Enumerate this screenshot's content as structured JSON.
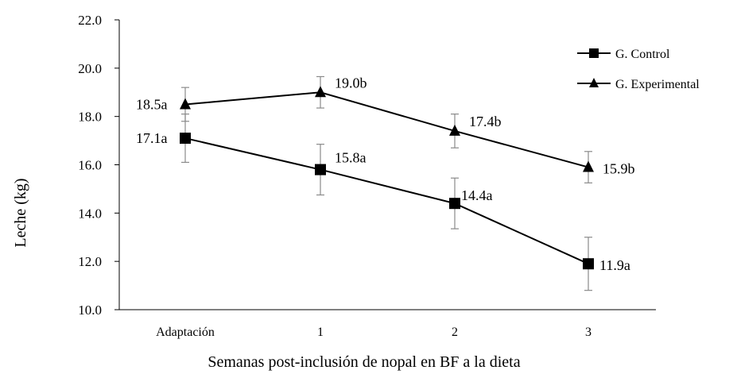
{
  "chart_data": {
    "type": "line",
    "categories": [
      "Adaptación",
      "1",
      "2",
      "3"
    ],
    "series": [
      {
        "name": "G. Control",
        "marker": "square",
        "values": [
          17.1,
          15.8,
          14.4,
          11.9
        ],
        "errors": [
          1.0,
          1.05,
          1.05,
          1.1
        ],
        "labels": [
          "17.1a",
          "15.8a",
          "14.4a",
          "11.9a"
        ]
      },
      {
        "name": "G. Experimental",
        "marker": "triangle",
        "values": [
          18.5,
          19.0,
          17.4,
          15.9
        ],
        "errors": [
          0.7,
          0.65,
          0.7,
          0.65
        ],
        "labels": [
          "18.5a",
          "19.0b",
          "17.4b",
          "15.9b"
        ]
      }
    ],
    "ylabel": "Leche (kg)",
    "xlabel": "Semanas post-inclusión de nopal en BF a la dieta",
    "ylim": [
      10.0,
      22.0
    ],
    "yticks": [
      "10.0",
      "12.0",
      "14.0",
      "16.0",
      "18.0",
      "20.0",
      "22.0"
    ],
    "legend_position": "top-right",
    "grid": false,
    "line_color": "#000000",
    "errorbar_color": "#8a8a8a"
  }
}
